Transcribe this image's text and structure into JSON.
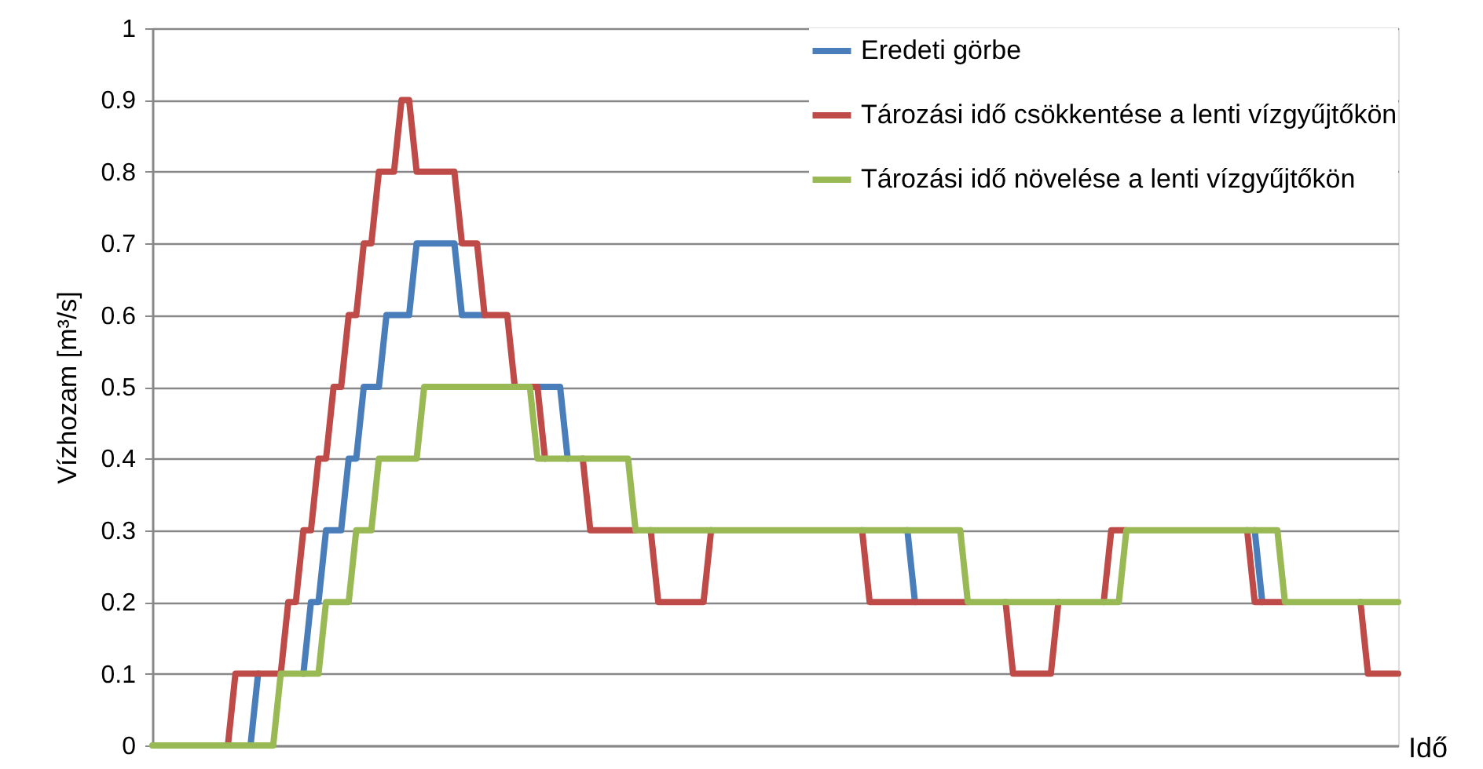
{
  "chart_data": {
    "type": "line",
    "xlabel": "Idő",
    "ylabel": "Vízhozam [m³/s]",
    "categories": [
      null,
      null,
      null,
      null,
      null,
      null,
      null,
      null,
      null,
      null,
      null,
      null,
      null,
      null,
      null,
      null,
      null,
      null,
      null,
      null,
      null,
      null,
      null,
      null,
      null,
      null,
      null,
      null,
      null,
      null,
      null,
      null,
      null,
      null,
      null,
      null,
      null,
      null,
      null,
      null,
      null,
      null,
      null,
      null,
      null,
      null,
      null,
      null,
      null,
      null,
      null,
      null,
      null,
      null,
      null,
      null,
      null,
      null,
      null,
      null,
      null,
      null,
      null,
      null,
      null,
      null,
      null,
      null,
      null,
      null,
      null,
      null,
      null,
      null,
      null,
      null,
      null,
      null,
      null,
      null,
      null,
      null,
      null,
      null,
      null,
      null,
      null,
      null,
      null,
      null,
      null,
      null,
      null,
      null,
      null,
      null,
      null,
      null,
      null,
      null,
      null,
      null,
      null,
      null,
      null,
      null,
      null,
      null,
      null,
      null,
      null,
      null,
      null,
      null,
      null,
      null,
      null,
      null,
      null,
      null,
      null,
      null,
      null,
      null,
      null,
      null,
      null,
      null,
      null,
      null,
      null,
      null,
      null,
      null,
      null,
      null,
      null,
      null,
      null,
      null,
      null,
      null,
      null,
      null,
      null,
      null,
      null,
      null,
      null,
      null,
      null,
      null,
      null,
      null,
      null,
      null,
      null,
      null,
      null,
      null,
      null,
      null,
      null,
      null,
      null,
      null
    ],
    "series": [
      {
        "name": "Eredeti görbe",
        "color": "#4a7ebb",
        "values": [
          null,
          null,
          null,
          null,
          null,
          null,
          null,
          null,
          null,
          null,
          null,
          null,
          null,
          0,
          0.1,
          null,
          null,
          null,
          null,
          null,
          0.1,
          0.2,
          0.2,
          0.3,
          0.3,
          0.3,
          0.4,
          0.4,
          0.5,
          0.5,
          0.5,
          0.6,
          0.6,
          0.6,
          0.6,
          0.7,
          0.7,
          0.7,
          0.7,
          0.7,
          0.7,
          0.6,
          0.6,
          0.6,
          0.6,
          null,
          null,
          null,
          null,
          null,
          null,
          0.5,
          0.5,
          0.5,
          0.5,
          0.4,
          null,
          null,
          null,
          null,
          null,
          null,
          null,
          null,
          null,
          null,
          null,
          null,
          null,
          null,
          null,
          null,
          null,
          null,
          null,
          null,
          null,
          null,
          null,
          null,
          null,
          null,
          null,
          null,
          null,
          null,
          null,
          null,
          null,
          null,
          null,
          null,
          null,
          null,
          null,
          null,
          null,
          null,
          null,
          null,
          0.3,
          0.2,
          null,
          null,
          null,
          null,
          null,
          null,
          null,
          null,
          null,
          null,
          null,
          null,
          null,
          null,
          null,
          null,
          null,
          null,
          null,
          null,
          null,
          null,
          null,
          null,
          null,
          null,
          null,
          null,
          null,
          null,
          null,
          null,
          null,
          null,
          null,
          null,
          null,
          null,
          null,
          null,
          null,
          null,
          null,
          null,
          0.3,
          0.2,
          null,
          null,
          null,
          null,
          null,
          null,
          null,
          null,
          null,
          null,
          null,
          null,
          null,
          null,
          null,
          null,
          null,
          null
        ]
      },
      {
        "name": "Tározási idő csökkentése a lenti vízgyűjtőkön",
        "color": "#be4b48",
        "values": [
          null,
          null,
          null,
          null,
          null,
          null,
          null,
          null,
          null,
          null,
          0,
          0.1,
          0.1,
          0.1,
          0.1,
          0.1,
          0.1,
          0.1,
          0.2,
          0.2,
          0.3,
          0.3,
          0.4,
          0.4,
          0.5,
          0.5,
          0.6,
          0.6,
          0.7,
          0.7,
          0.8,
          0.8,
          0.8,
          0.9,
          0.9,
          0.8,
          0.8,
          0.8,
          0.8,
          0.8,
          0.8,
          0.7,
          0.7,
          0.7,
          0.6,
          0.6,
          0.6,
          0.6,
          0.5,
          null,
          0.5,
          0.5,
          0.4,
          null,
          null,
          null,
          null,
          0.4,
          0.3,
          0.3,
          0.3,
          0.3,
          0.3,
          0.3,
          0.3,
          null,
          0.3,
          0.2,
          0.2,
          0.2,
          0.2,
          0.2,
          0.2,
          0.2,
          0.3,
          null,
          null,
          null,
          null,
          null,
          null,
          null,
          null,
          null,
          null,
          null,
          null,
          null,
          null,
          null,
          null,
          null,
          null,
          null,
          0.3,
          0.2,
          0.2,
          0.2,
          0.2,
          0.2,
          0.2,
          0.2,
          0.2,
          0.2,
          0.2,
          0.2,
          0.2,
          0.2,
          0.2,
          null,
          null,
          null,
          null,
          0.2,
          0.1,
          0.1,
          0.1,
          0.1,
          0.1,
          0.1,
          0.2,
          null,
          null,
          null,
          null,
          null,
          0.2,
          0.3,
          0.3,
          0.3,
          null,
          null,
          null,
          null,
          null,
          null,
          null,
          null,
          null,
          null,
          null,
          null,
          null,
          null,
          null,
          0.3,
          0.2,
          0.2,
          0.2,
          0.2,
          0.2,
          null,
          null,
          null,
          null,
          null,
          null,
          null,
          null,
          null,
          0.2,
          0.1,
          0.1,
          0.1,
          0.1,
          0.1
        ]
      },
      {
        "name": "Tározási idő növelése a lenti vízgyűjtőkön",
        "color": "#98b954",
        "values": [
          0,
          0,
          0,
          0,
          0,
          0,
          0,
          0,
          0,
          0,
          0,
          0,
          0,
          0,
          0,
          0,
          0,
          0.1,
          0.1,
          0.1,
          0.1,
          0.1,
          0.1,
          0.2,
          0.2,
          0.2,
          0.2,
          0.3,
          0.3,
          0.3,
          0.4,
          0.4,
          0.4,
          0.4,
          0.4,
          0.4,
          0.5,
          0.5,
          0.5,
          0.5,
          0.5,
          0.5,
          0.5,
          0.5,
          0.5,
          0.5,
          0.5,
          0.5,
          0.5,
          0.5,
          0.5,
          0.4,
          0.4,
          0.4,
          0.4,
          0.4,
          0.4,
          0.4,
          0.4,
          0.4,
          0.4,
          0.4,
          0.4,
          0.4,
          0.3,
          0.3,
          0.3,
          0.3,
          0.3,
          0.3,
          0.3,
          0.3,
          0.3,
          0.3,
          0.3,
          0.3,
          0.3,
          0.3,
          0.3,
          0.3,
          0.3,
          0.3,
          0.3,
          0.3,
          0.3,
          0.3,
          0.3,
          0.3,
          0.3,
          0.3,
          0.3,
          0.3,
          0.3,
          0.3,
          0.3,
          0.3,
          0.3,
          0.3,
          0.3,
          0.3,
          0.3,
          0.3,
          0.3,
          0.3,
          0.3,
          0.3,
          0.3,
          0.3,
          0.2,
          0.2,
          0.2,
          0.2,
          0.2,
          0.2,
          0.2,
          0.2,
          0.2,
          0.2,
          0.2,
          0.2,
          0.2,
          0.2,
          0.2,
          0.2,
          0.2,
          0.2,
          0.2,
          0.2,
          0.2,
          0.3,
          0.3,
          0.3,
          0.3,
          0.3,
          0.3,
          0.3,
          0.3,
          0.3,
          0.3,
          0.3,
          0.3,
          0.3,
          0.3,
          0.3,
          0.3,
          0.3,
          0.3,
          0.3,
          0.3,
          0.3,
          0.2,
          0.2,
          0.2,
          0.2,
          0.2,
          0.2,
          0.2,
          0.2,
          0.2,
          0.2,
          0.2,
          0.2,
          0.2,
          0.2,
          0.2,
          0.2
        ]
      }
    ],
    "ylim": [
      0,
      1
    ],
    "yticks": [
      0,
      0.1,
      0.2,
      0.3,
      0.4,
      0.5,
      0.6,
      0.7,
      0.8,
      0.9,
      1
    ],
    "grid": "y",
    "legend": "top right"
  }
}
